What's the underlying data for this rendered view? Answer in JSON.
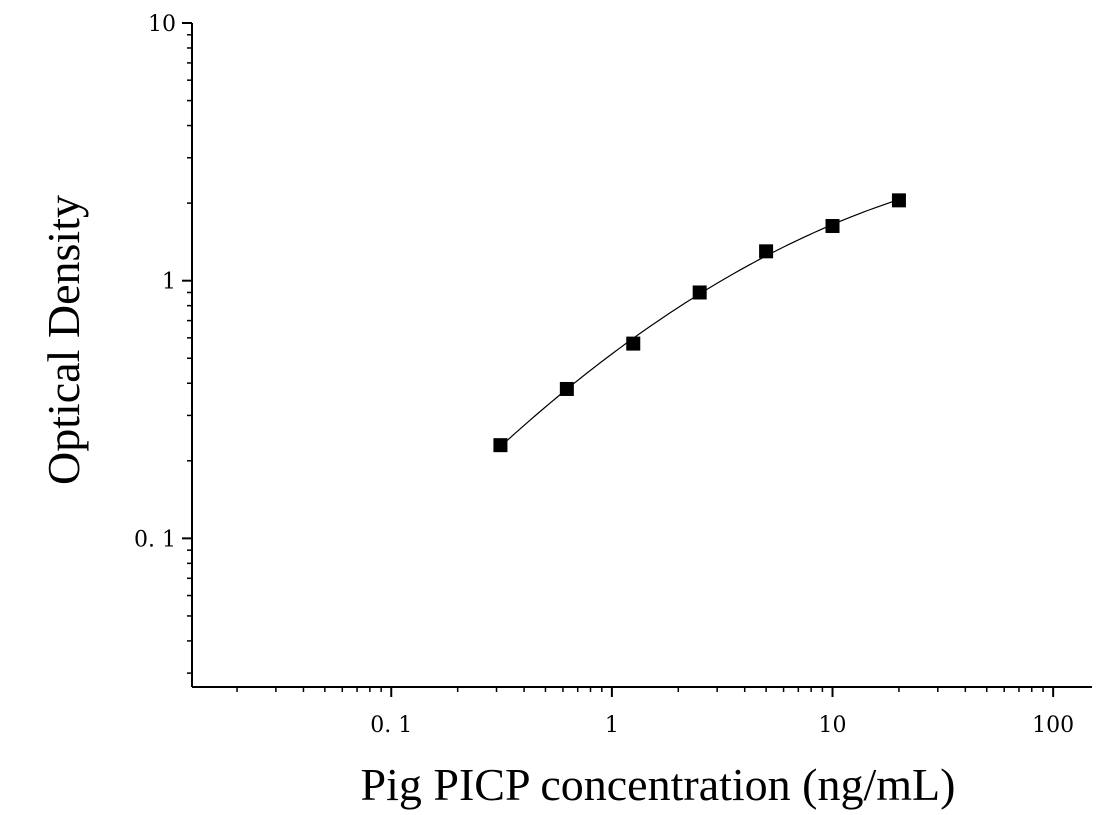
{
  "chart_data": {
    "type": "scatter",
    "xlabel": "Pig PICP concentration (ng/mL)",
    "ylabel": "Optical Density",
    "x_scale": "log",
    "y_scale": "log",
    "xlim": [
      0.0125,
      150
    ],
    "ylim": [
      0.0265,
      10
    ],
    "x_ticks": [
      {
        "value": 0.1,
        "label": "0. 1"
      },
      {
        "value": 1,
        "label": "1"
      },
      {
        "value": 10,
        "label": "10"
      },
      {
        "value": 100,
        "label": "100"
      }
    ],
    "y_ticks": [
      {
        "value": 10,
        "label": "10"
      },
      {
        "value": 1,
        "label": "1"
      },
      {
        "value": 0.1,
        "label": "0. 1"
      }
    ],
    "grid": false,
    "series": [
      {
        "x": [
          0.3125,
          0.625,
          1.25,
          2.5,
          5,
          10,
          20
        ],
        "y": [
          0.23,
          0.38,
          0.57,
          0.9,
          1.3,
          1.63,
          2.05
        ],
        "marker": "square",
        "color": "#000000",
        "fit_line": true
      }
    ]
  }
}
